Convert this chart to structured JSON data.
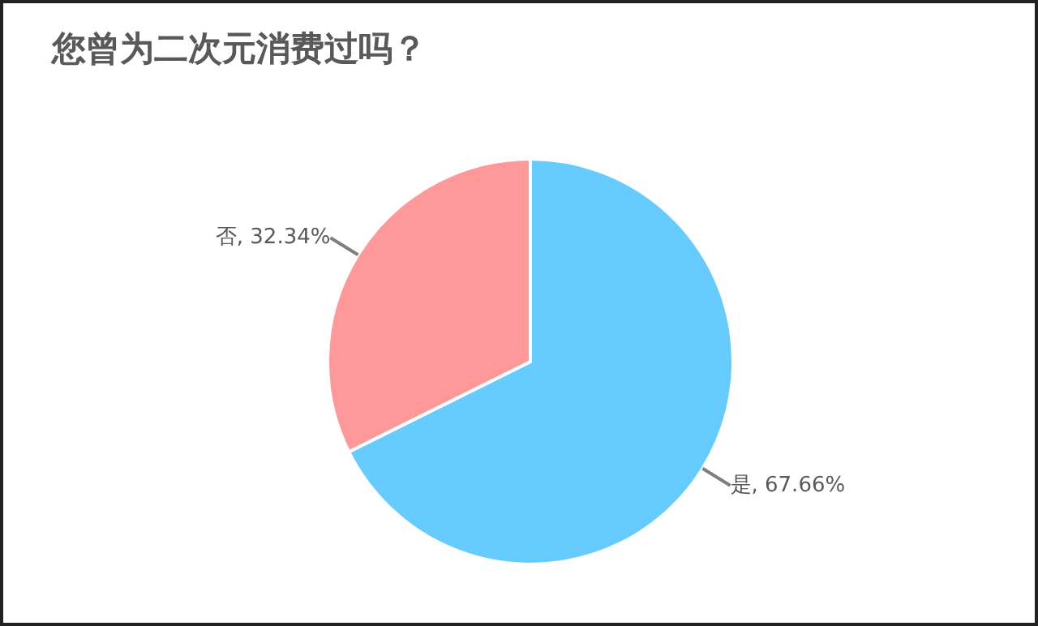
{
  "chart_data": {
    "type": "pie",
    "title": "您曾为二次元消费过吗？",
    "categories": [
      "是",
      "否"
    ],
    "values": [
      67.66,
      32.34
    ],
    "colors": [
      "#66ccff",
      "#ff9999"
    ],
    "value_labels": [
      "67.66%",
      "32.34%"
    ],
    "legend": false
  }
}
